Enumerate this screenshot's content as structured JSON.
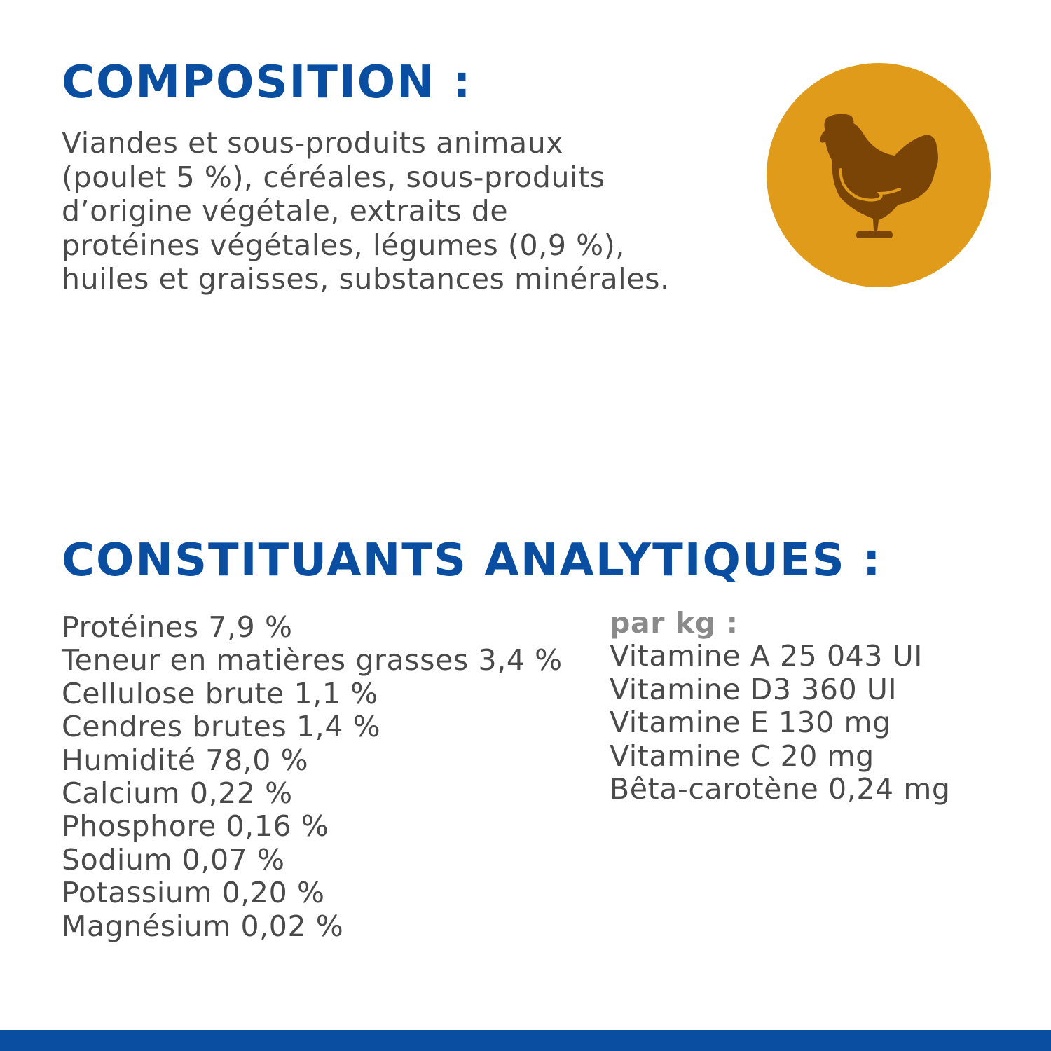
{
  "composition": {
    "title": "COMPOSITION :",
    "lines": [
      "Viandes et sous-produits animaux",
      "(poulet 5 %), céréales, sous-produits",
      "d’origine végétale, extraits de",
      "protéines végétales, légumes (0,9 %),",
      "huiles et graisses, substances minérales."
    ],
    "icon": "chicken-icon",
    "icon_bg_color": "#e09b1a",
    "icon_fg_color": "#7a4406"
  },
  "analytical": {
    "title": "CONSTITUANTS ANALYTIQUES :",
    "items": [
      "Protéines 7,9 %",
      "Teneur en matières grasses 3,4 %",
      "Cellulose brute 1,1 %",
      "Cendres brutes 1,4 %",
      "Humidité 78,0 %",
      "Calcium 0,22 %",
      "Phosphore 0,16 %",
      "Sodium 0,07 %",
      "Potassium 0,20 %",
      "Magnésium 0,02 %"
    ],
    "per_kg_label": "par kg :",
    "per_kg_items": [
      "Vitamine A 25 043 UI",
      "Vitamine D3 360 UI",
      "Vitamine E 130 mg",
      "Vitamine C 20 mg",
      "Bêta-carotène 0,24 mg"
    ]
  },
  "colors": {
    "title": "#0a4ea2",
    "text": "#4a4a4a",
    "bottom_bar": "#0a4ea2"
  }
}
